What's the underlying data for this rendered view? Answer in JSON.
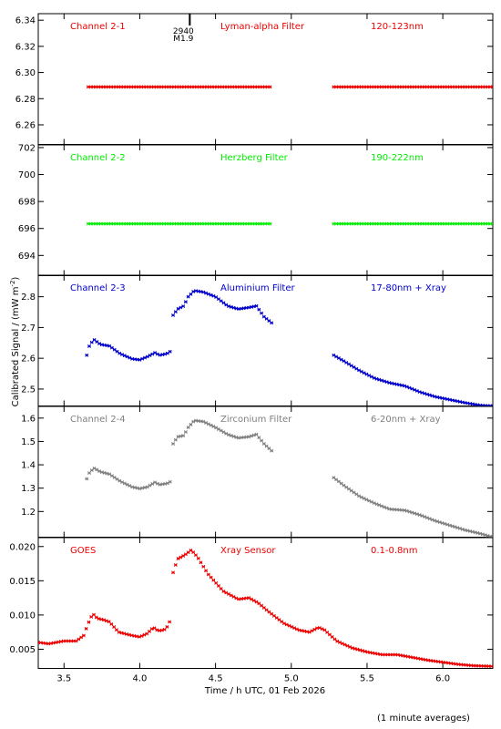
{
  "chart_data": {
    "type": "scatter",
    "xlabel": "Time / h UTC, 01 Feb 2026",
    "ylabel": "Calibrated Signal / (mW m",
    "ylabel_sup": "-2",
    "ylabel_close": ")",
    "footer": "(1 minute averages)",
    "xlim": [
      3.33,
      6.33
    ],
    "xticks": [
      "3.5",
      "4.0",
      "4.5",
      "5.0",
      "5.5",
      "6.0"
    ],
    "flare_marker": {
      "x": 4.33,
      "label_top": "2940",
      "label_bottom": "M1.9"
    },
    "panels": [
      {
        "channel": "Channel 2-1",
        "filter": "Lyman-alpha Filter",
        "band": "120-123nm",
        "color": "#ee0000",
        "ylim": [
          6.245,
          6.345
        ],
        "yticks": [
          "6.26",
          "6.28",
          "6.30",
          "6.32",
          "6.34"
        ],
        "segments": [
          {
            "x0": 3.66,
            "x1": 4.87,
            "knots": [
              [
                3.66,
                6.289
              ],
              [
                4.87,
                6.289
              ]
            ]
          },
          {
            "x0": 5.28,
            "x1": 6.33,
            "knots": [
              [
                5.28,
                6.289
              ],
              [
                6.33,
                6.289
              ]
            ]
          }
        ]
      },
      {
        "channel": "Channel 2-2",
        "filter": "Herzberg Filter",
        "band": "190-222nm",
        "color": "#00ee00",
        "ylim": [
          692.5,
          702.2
        ],
        "yticks": [
          "694",
          "696",
          "698",
          "700",
          "702"
        ],
        "segments": [
          {
            "x0": 3.66,
            "x1": 4.87,
            "knots": [
              [
                3.66,
                696.35
              ],
              [
                4.87,
                696.35
              ]
            ]
          },
          {
            "x0": 5.28,
            "x1": 6.33,
            "knots": [
              [
                5.28,
                696.35
              ],
              [
                6.33,
                696.35
              ]
            ]
          }
        ]
      },
      {
        "channel": "Channel 2-3",
        "filter": "Aluminium Filter",
        "band": "17-80nm + Xray",
        "color": "#0000cc",
        "ylim": [
          2.445,
          2.87
        ],
        "yticks": [
          "2.5",
          "2.6",
          "2.7",
          "2.8"
        ],
        "segments": [
          {
            "x0": 3.65,
            "x1": 4.21,
            "knots": [
              [
                3.65,
                2.61
              ],
              [
                3.67,
                2.645
              ],
              [
                3.7,
                2.66
              ],
              [
                3.74,
                2.645
              ],
              [
                3.8,
                2.64
              ],
              [
                3.87,
                2.615
              ],
              [
                3.95,
                2.598
              ],
              [
                4.0,
                2.595
              ],
              [
                4.05,
                2.605
              ],
              [
                4.1,
                2.618
              ],
              [
                4.13,
                2.61
              ],
              [
                4.18,
                2.615
              ],
              [
                4.21,
                2.625
              ]
            ]
          },
          {
            "x0": 4.22,
            "x1": 4.87,
            "knots": [
              [
                4.22,
                2.74
              ],
              [
                4.25,
                2.76
              ],
              [
                4.29,
                2.77
              ],
              [
                4.32,
                2.8
              ],
              [
                4.36,
                2.82
              ],
              [
                4.42,
                2.815
              ],
              [
                4.5,
                2.8
              ],
              [
                4.58,
                2.77
              ],
              [
                4.65,
                2.76
              ],
              [
                4.72,
                2.765
              ],
              [
                4.77,
                2.77
              ],
              [
                4.82,
                2.735
              ],
              [
                4.87,
                2.715
              ]
            ]
          },
          {
            "x0": 5.28,
            "x1": 6.33,
            "knots": [
              [
                5.28,
                2.61
              ],
              [
                5.35,
                2.59
              ],
              [
                5.45,
                2.56
              ],
              [
                5.55,
                2.535
              ],
              [
                5.65,
                2.52
              ],
              [
                5.75,
                2.51
              ],
              [
                5.85,
                2.49
              ],
              [
                5.95,
                2.475
              ],
              [
                6.05,
                2.465
              ],
              [
                6.15,
                2.455
              ],
              [
                6.25,
                2.447
              ],
              [
                6.33,
                2.445
              ]
            ]
          }
        ]
      },
      {
        "channel": "Channel 2-4",
        "filter": "Zirconium Filter",
        "band": "6-20nm + Xray",
        "color": "#808080",
        "ylim": [
          1.09,
          1.65
        ],
        "yticks": [
          "1.2",
          "1.3",
          "1.4",
          "1.5",
          "1.6"
        ],
        "segments": [
          {
            "x0": 3.65,
            "x1": 4.21,
            "knots": [
              [
                3.65,
                1.34
              ],
              [
                3.67,
                1.37
              ],
              [
                3.7,
                1.385
              ],
              [
                3.74,
                1.37
              ],
              [
                3.8,
                1.36
              ],
              [
                3.87,
                1.33
              ],
              [
                3.95,
                1.305
              ],
              [
                4.0,
                1.298
              ],
              [
                4.05,
                1.305
              ],
              [
                4.1,
                1.325
              ],
              [
                4.13,
                1.315
              ],
              [
                4.18,
                1.32
              ],
              [
                4.21,
                1.33
              ]
            ]
          },
          {
            "x0": 4.22,
            "x1": 4.87,
            "knots": [
              [
                4.22,
                1.49
              ],
              [
                4.25,
                1.52
              ],
              [
                4.29,
                1.525
              ],
              [
                4.32,
                1.56
              ],
              [
                4.36,
                1.59
              ],
              [
                4.42,
                1.585
              ],
              [
                4.5,
                1.56
              ],
              [
                4.58,
                1.53
              ],
              [
                4.65,
                1.515
              ],
              [
                4.72,
                1.52
              ],
              [
                4.77,
                1.53
              ],
              [
                4.82,
                1.49
              ],
              [
                4.87,
                1.46
              ]
            ]
          },
          {
            "x0": 5.28,
            "x1": 6.33,
            "knots": [
              [
                5.28,
                1.345
              ],
              [
                5.35,
                1.31
              ],
              [
                5.45,
                1.265
              ],
              [
                5.55,
                1.235
              ],
              [
                5.65,
                1.21
              ],
              [
                5.75,
                1.205
              ],
              [
                5.85,
                1.185
              ],
              [
                5.95,
                1.16
              ],
              [
                6.05,
                1.14
              ],
              [
                6.15,
                1.12
              ],
              [
                6.25,
                1.105
              ],
              [
                6.33,
                1.09
              ]
            ]
          }
        ]
      },
      {
        "channel": "GOES",
        "filter": "Xray Sensor",
        "band": "0.1-0.8nm",
        "color": "#ee0000",
        "ylim": [
          0.0022,
          0.0213
        ],
        "yticks": [
          "0.005",
          "0.010",
          "0.015",
          "0.020"
        ],
        "segments": [
          {
            "x0": 3.33,
            "x1": 4.21,
            "knots": [
              [
                3.33,
                0.006
              ],
              [
                3.4,
                0.0058
              ],
              [
                3.5,
                0.0062
              ],
              [
                3.58,
                0.0062
              ],
              [
                3.63,
                0.007
              ],
              [
                3.66,
                0.0088
              ],
              [
                3.69,
                0.0102
              ],
              [
                3.72,
                0.0095
              ],
              [
                3.76,
                0.0093
              ],
              [
                3.8,
                0.009
              ],
              [
                3.86,
                0.0075
              ],
              [
                3.95,
                0.007
              ],
              [
                4.0,
                0.0068
              ],
              [
                4.05,
                0.0073
              ],
              [
                4.09,
                0.0082
              ],
              [
                4.12,
                0.0077
              ],
              [
                4.16,
                0.0078
              ],
              [
                4.19,
                0.0085
              ],
              [
                4.21,
                0.01
              ]
            ]
          },
          {
            "x0": 4.22,
            "x1": 6.33,
            "knots": [
              [
                4.22,
                0.0162
              ],
              [
                4.25,
                0.0182
              ],
              [
                4.3,
                0.0188
              ],
              [
                4.34,
                0.0195
              ],
              [
                4.38,
                0.0185
              ],
              [
                4.45,
                0.016
              ],
              [
                4.55,
                0.0135
              ],
              [
                4.65,
                0.0123
              ],
              [
                4.72,
                0.0125
              ],
              [
                4.78,
                0.0118
              ],
              [
                4.85,
                0.0105
              ],
              [
                4.95,
                0.0088
              ],
              [
                5.05,
                0.0078
              ],
              [
                5.12,
                0.0075
              ],
              [
                5.18,
                0.0082
              ],
              [
                5.22,
                0.0078
              ],
              [
                5.3,
                0.0062
              ],
              [
                5.4,
                0.0052
              ],
              [
                5.5,
                0.0046
              ],
              [
                5.6,
                0.0042
              ],
              [
                5.7,
                0.0042
              ],
              [
                5.8,
                0.0038
              ],
              [
                5.9,
                0.0034
              ],
              [
                6.0,
                0.0031
              ],
              [
                6.1,
                0.0028
              ],
              [
                6.2,
                0.0026
              ],
              [
                6.33,
                0.0025
              ]
            ]
          }
        ]
      }
    ]
  }
}
